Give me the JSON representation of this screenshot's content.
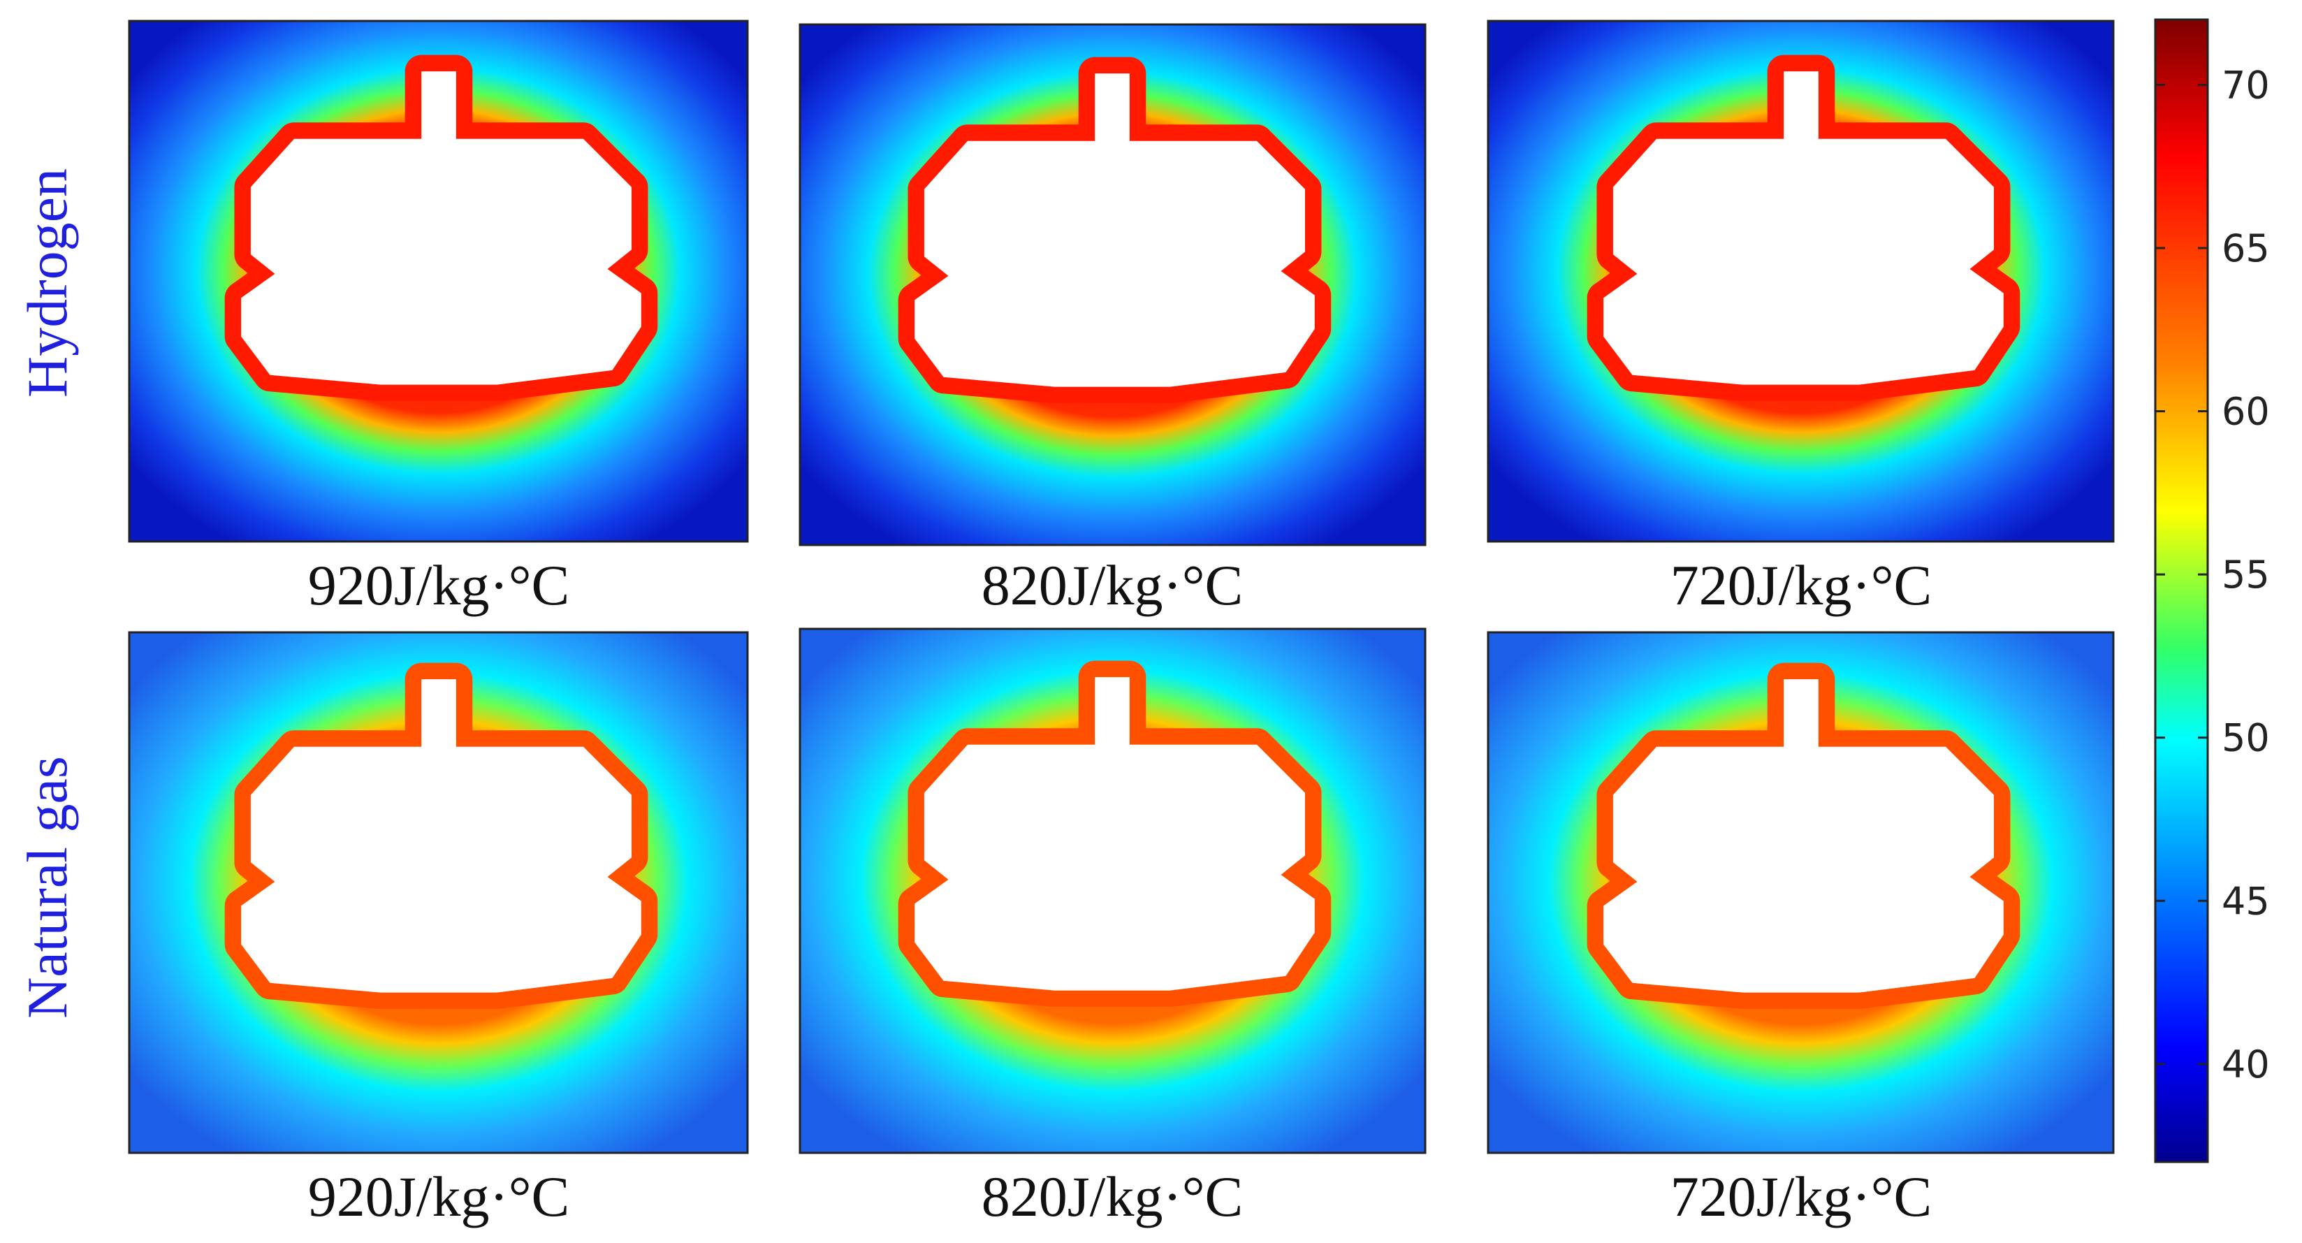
{
  "rows": [
    {
      "label": "Hydrogen",
      "panels": [
        {
          "caption": "920J/kg·°C"
        },
        {
          "caption": "820J/kg·°C"
        },
        {
          "caption": "720J/kg·°C"
        }
      ]
    },
    {
      "label": "Natural gas",
      "panels": [
        {
          "caption": "920J/kg·°C"
        },
        {
          "caption": "820J/kg·°C"
        },
        {
          "caption": "720J/kg·°C"
        }
      ]
    }
  ],
  "colorbar": {
    "min": 37,
    "max": 72,
    "ticks": [
      "70",
      "65",
      "60",
      "55",
      "50",
      "45",
      "40"
    ],
    "colors": [
      "#7f0000",
      "#ff0000",
      "#ff8000",
      "#ffff00",
      "#33ff66",
      "#00ffff",
      "#0080ff",
      "#0000ff",
      "#00008f"
    ]
  },
  "colors": {
    "hydrogen_background_outer": "#0a22d0",
    "hydrogen_background_inner": "#1f8fff",
    "natural_gas_background_outer": "#1a55e8",
    "natural_gas_background_inner": "#2fb6ff",
    "hot_zone": "#ee1a0a",
    "warm_zone": "#ff7a00",
    "cavity": "#ffffff"
  }
}
